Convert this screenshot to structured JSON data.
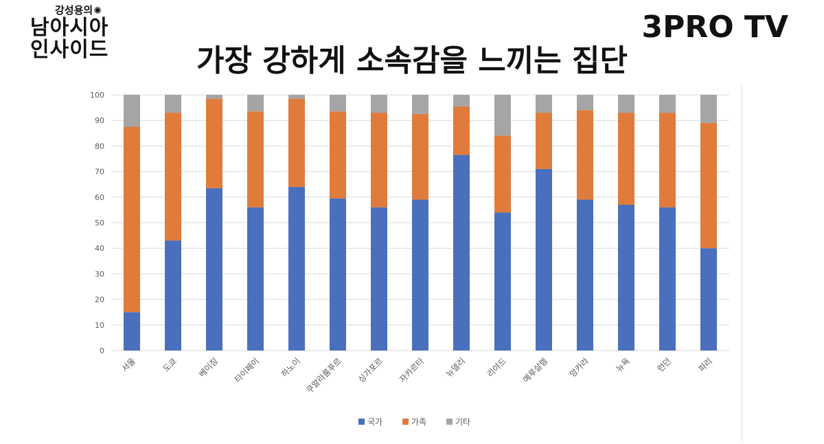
{
  "logo_left": {
    "subtitle": "강성용의",
    "line1": "남아시아",
    "line2": "인사이드"
  },
  "logo_right": "3PRO TV",
  "title": "가장 강하게 소속감을 느끼는 집단",
  "colors": {
    "국가": "#4a6fbd",
    "가족": "#e07b3c",
    "기타": "#a5a5a5",
    "grid": "#d9d9d9"
  },
  "chart_data": {
    "type": "bar",
    "stacked": true,
    "title": "가장 강하게 소속감을 느끼는 집단",
    "categories": [
      "서울",
      "도쿄",
      "베이징",
      "타이페이",
      "하노이",
      "쿠알라룸푸르",
      "싱가포르",
      "자카르타",
      "뉴델리",
      "리야드",
      "예루살렘",
      "앙카라",
      "뉴욕",
      "런던",
      "파리"
    ],
    "series": [
      {
        "name": "국가",
        "values": [
          15,
          43,
          63.5,
          56,
          64,
          59.5,
          56,
          59,
          76.5,
          54,
          71,
          59,
          57,
          56,
          40
        ]
      },
      {
        "name": "가족",
        "values": [
          72.5,
          50,
          35,
          37.5,
          34.5,
          34,
          37,
          33.5,
          19,
          30,
          22,
          35,
          36,
          37,
          49
        ]
      },
      {
        "name": "기타",
        "values": [
          12.5,
          7,
          1.5,
          6.5,
          1.5,
          6.5,
          7,
          7.5,
          4.5,
          16,
          7,
          6,
          7,
          7,
          11
        ]
      }
    ],
    "yticks": [
      "0",
      "10",
      "20",
      "30",
      "40",
      "50",
      "60",
      "70",
      "80",
      "90",
      "100"
    ],
    "ylim": [
      0,
      100
    ],
    "xlabel": "",
    "ylabel": "",
    "legend_position": "bottom"
  }
}
